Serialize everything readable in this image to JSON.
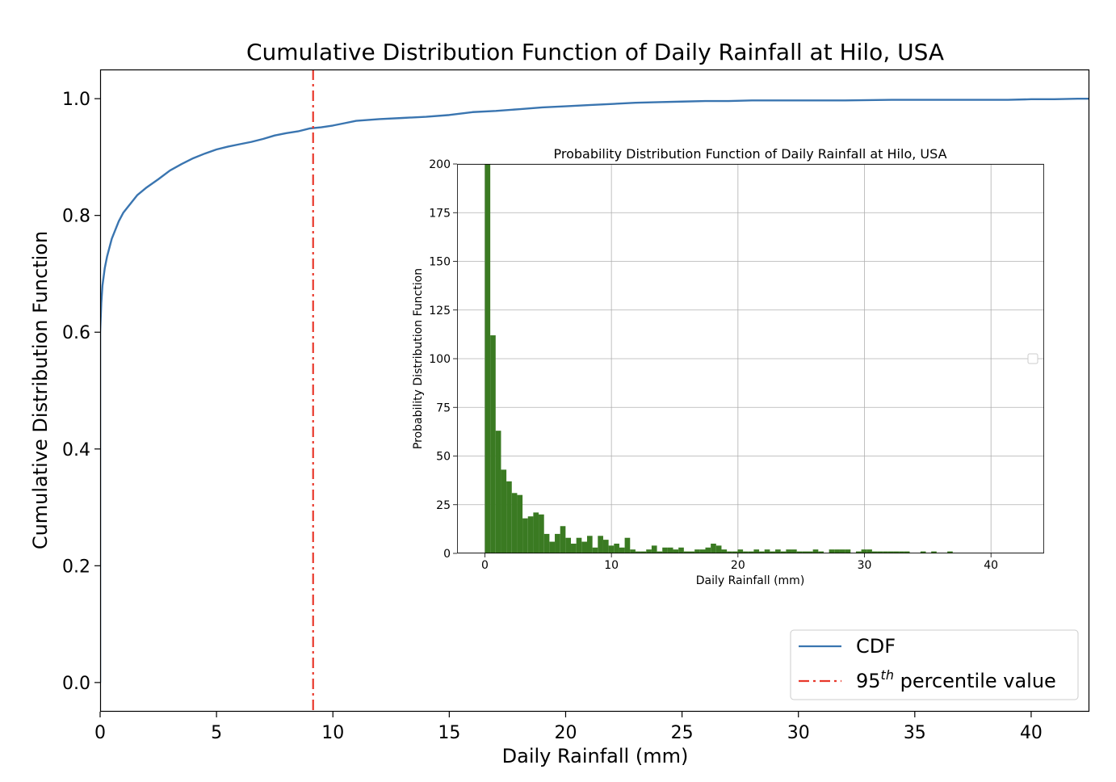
{
  "chart_data": [
    {
      "type": "line",
      "title": "Cumulative Distribution Function of Daily Rainfall at Hilo, USA",
      "xlabel": "Daily Rainfall (mm)",
      "ylabel": "Cumulative Distribution Function",
      "xlim": [
        0,
        42.5
      ],
      "ylim": [
        -0.05,
        1.05
      ],
      "xticks": [
        "0",
        "5",
        "10",
        "15",
        "20",
        "25",
        "30",
        "35",
        "40"
      ],
      "yticks": [
        "0.0",
        "0.2",
        "0.4",
        "0.6",
        "0.8",
        "1.0"
      ],
      "grid": false,
      "legend_position": "lower-right",
      "series": [
        {
          "name": "CDF",
          "color": "#3a75b0",
          "x": [
            0,
            0,
            0.05,
            0.1,
            0.2,
            0.3,
            0.5,
            0.8,
            1.0,
            1.3,
            1.6,
            2.0,
            2.5,
            3.0,
            3.5,
            4.0,
            4.5,
            5.0,
            5.5,
            6.0,
            6.5,
            7.0,
            7.5,
            8.0,
            8.5,
            9.0,
            9.5,
            10.0,
            10.5,
            11.0,
            12.0,
            13.0,
            14.0,
            15.0,
            16.0,
            17.0,
            18.0,
            19.0,
            20.0,
            21.0,
            22.0,
            23.0,
            24.0,
            25.0,
            26.0,
            27.0,
            28.0,
            30.0,
            32.0,
            34.0,
            36.0,
            38.0,
            39.0,
            40.0,
            41.0,
            42.0,
            42.5
          ],
          "y": [
            0.0,
            0.6,
            0.65,
            0.68,
            0.71,
            0.73,
            0.76,
            0.79,
            0.805,
            0.82,
            0.835,
            0.848,
            0.862,
            0.877,
            0.888,
            0.898,
            0.906,
            0.913,
            0.918,
            0.922,
            0.926,
            0.931,
            0.937,
            0.941,
            0.944,
            0.949,
            0.951,
            0.954,
            0.958,
            0.962,
            0.965,
            0.967,
            0.969,
            0.972,
            0.977,
            0.979,
            0.982,
            0.985,
            0.987,
            0.989,
            0.991,
            0.993,
            0.994,
            0.995,
            0.996,
            0.996,
            0.997,
            0.997,
            0.997,
            0.998,
            0.998,
            0.998,
            0.998,
            0.999,
            0.999,
            1.0,
            1.0
          ]
        },
        {
          "name": "95th percentile value",
          "color": "#e8382b",
          "style": "dash-dot",
          "x_value": 9.15
        }
      ],
      "legend": [
        {
          "label": "CDF",
          "color": "#3a75b0",
          "style": "solid"
        },
        {
          "label_prefix": "95",
          "label_sup": "th",
          "label_suffix": " percentile value",
          "color": "#e8382b",
          "style": "dash-dot"
        }
      ]
    },
    {
      "type": "bar",
      "title": "Probability Distribution Function of Daily Rainfall at Hilo, USA",
      "xlabel": "Daily Rainfall (mm)",
      "ylabel": "Probability Distribution Function",
      "xlim": [
        -2.2,
        44.2
      ],
      "ylim": [
        0,
        200
      ],
      "xticks": [
        "0",
        "10",
        "20",
        "30",
        "40"
      ],
      "yticks": [
        "0",
        "25",
        "50",
        "75",
        "100",
        "125",
        "150",
        "175",
        "200"
      ],
      "grid": true,
      "bar_color": "#3a7a22",
      "bin_width": 0.425,
      "bin_start": 0,
      "values": [
        200,
        112,
        63,
        43,
        37,
        31,
        30,
        18,
        19,
        21,
        20,
        10,
        6,
        10,
        14,
        8,
        5,
        8,
        6,
        9,
        3,
        9,
        7,
        4,
        5,
        3,
        8,
        2,
        1,
        1,
        2,
        4,
        1,
        3,
        3,
        2,
        3,
        1,
        1,
        2,
        2,
        3,
        5,
        4,
        2,
        1,
        1,
        2,
        1,
        1,
        2,
        1,
        2,
        1,
        2,
        1,
        2,
        2,
        1,
        1,
        1,
        2,
        1,
        0,
        2,
        2,
        2,
        2,
        0,
        1,
        2,
        2,
        1,
        1,
        1,
        1,
        1,
        1,
        1,
        0,
        0,
        1,
        0,
        1,
        0,
        0,
        1,
        0,
        0,
        0,
        0,
        0,
        0,
        0,
        0,
        0,
        0,
        0,
        0,
        0
      ]
    }
  ]
}
